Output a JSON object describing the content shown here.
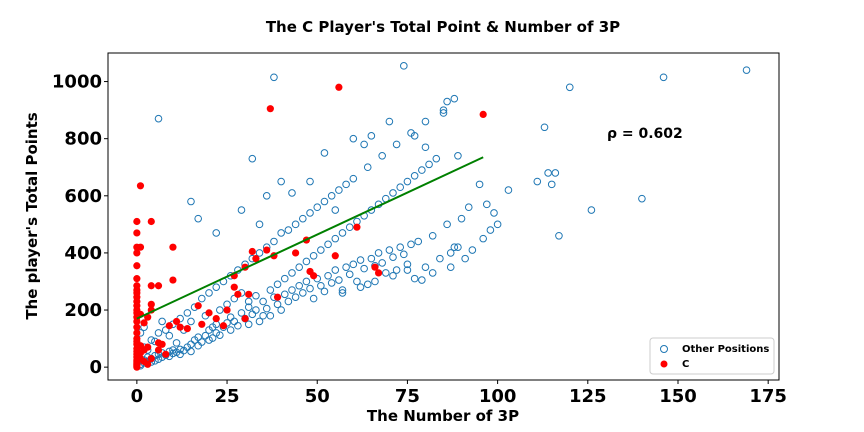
{
  "chart_data": {
    "type": "scatter",
    "title": "The C Player's Total Point & Number of 3P",
    "xlabel": "The Number of 3P",
    "ylabel": "The player's Total Points",
    "xlim": [
      -8,
      178
    ],
    "ylim": [
      -45,
      1100
    ],
    "x_ticks": [
      0,
      25,
      50,
      75,
      100,
      125,
      150,
      175
    ],
    "y_ticks": [
      0,
      200,
      400,
      600,
      800,
      1000
    ],
    "grid": false,
    "legend_position": "lower-right",
    "annotation": "ρ = 0.602",
    "colors": {
      "other": "#1f77b4",
      "c": "#ff0000",
      "trend": "#008000"
    },
    "trendline": {
      "x": [
        0,
        96
      ],
      "y": [
        170,
        735
      ]
    },
    "series": [
      {
        "name": "Other Positions",
        "marker": "open-circle",
        "points": [
          [
            1,
            5
          ],
          [
            1,
            10
          ],
          [
            2,
            15
          ],
          [
            2,
            25
          ],
          [
            3,
            20
          ],
          [
            3,
            35
          ],
          [
            4,
            18
          ],
          [
            4,
            30
          ],
          [
            5,
            22
          ],
          [
            5,
            40
          ],
          [
            6,
            28
          ],
          [
            6,
            45
          ],
          [
            7,
            35
          ],
          [
            7,
            50
          ],
          [
            8,
            42
          ],
          [
            9,
            38
          ],
          [
            9,
            55
          ],
          [
            10,
            48
          ],
          [
            10,
            60
          ],
          [
            11,
            52
          ],
          [
            12,
            45
          ],
          [
            12,
            62
          ],
          [
            13,
            58
          ],
          [
            14,
            70
          ],
          [
            15,
            55
          ],
          [
            15,
            80
          ],
          [
            16,
            95
          ],
          [
            17,
            75
          ],
          [
            17,
            105
          ],
          [
            18,
            88
          ],
          [
            19,
            110
          ],
          [
            20,
            95
          ],
          [
            20,
            130
          ],
          [
            21,
            102
          ],
          [
            22,
            120
          ],
          [
            22,
            150
          ],
          [
            23,
            112
          ],
          [
            24,
            140
          ],
          [
            25,
            155
          ],
          [
            26,
            130
          ],
          [
            26,
            175
          ],
          [
            27,
            160
          ],
          [
            28,
            145
          ],
          [
            29,
            190
          ],
          [
            30,
            170
          ],
          [
            31,
            150
          ],
          [
            31,
            210
          ],
          [
            32,
            185
          ],
          [
            33,
            200
          ],
          [
            34,
            160
          ],
          [
            35,
            230
          ],
          [
            36,
            205
          ],
          [
            37,
            180
          ],
          [
            38,
            245
          ],
          [
            39,
            220
          ],
          [
            40,
            200
          ],
          [
            41,
            255
          ],
          [
            42,
            230
          ],
          [
            43,
            270
          ],
          [
            44,
            245
          ],
          [
            45,
            285
          ],
          [
            46,
            260
          ],
          [
            47,
            300
          ],
          [
            48,
            275
          ],
          [
            49,
            240
          ],
          [
            50,
            310
          ],
          [
            51,
            285
          ],
          [
            52,
            265
          ],
          [
            53,
            320
          ],
          [
            54,
            295
          ],
          [
            55,
            340
          ],
          [
            56,
            305
          ],
          [
            57,
            270
          ],
          [
            58,
            350
          ],
          [
            59,
            325
          ],
          [
            60,
            360
          ],
          [
            61,
            300
          ],
          [
            62,
            375
          ],
          [
            63,
            345
          ],
          [
            64,
            290
          ],
          [
            65,
            380
          ],
          [
            66,
            355
          ],
          [
            67,
            400
          ],
          [
            68,
            365
          ],
          [
            69,
            330
          ],
          [
            70,
            410
          ],
          [
            71,
            385
          ],
          [
            72,
            340
          ],
          [
            73,
            420
          ],
          [
            74,
            395
          ],
          [
            75,
            360
          ],
          [
            76,
            430
          ],
          [
            77,
            310
          ],
          [
            78,
            440
          ],
          [
            80,
            350
          ],
          [
            82,
            460
          ],
          [
            84,
            380
          ],
          [
            86,
            500
          ],
          [
            88,
            420
          ],
          [
            90,
            520
          ],
          [
            2,
            70
          ],
          [
            4,
            95
          ],
          [
            6,
            120
          ],
          [
            8,
            130
          ],
          [
            10,
            150
          ],
          [
            12,
            170
          ],
          [
            14,
            190
          ],
          [
            16,
            210
          ],
          [
            18,
            240
          ],
          [
            20,
            260
          ],
          [
            22,
            280
          ],
          [
            24,
            300
          ],
          [
            26,
            320
          ],
          [
            28,
            340
          ],
          [
            30,
            360
          ],
          [
            32,
            380
          ],
          [
            34,
            400
          ],
          [
            36,
            420
          ],
          [
            38,
            440
          ],
          [
            40,
            470
          ],
          [
            42,
            480
          ],
          [
            44,
            500
          ],
          [
            46,
            520
          ],
          [
            48,
            540
          ],
          [
            50,
            560
          ],
          [
            52,
            580
          ],
          [
            54,
            600
          ],
          [
            56,
            620
          ],
          [
            58,
            640
          ],
          [
            60,
            660
          ],
          [
            64,
            700
          ],
          [
            68,
            740
          ],
          [
            72,
            780
          ],
          [
            76,
            820
          ],
          [
            80,
            860
          ],
          [
            85,
            900
          ],
          [
            86,
            930
          ],
          [
            88,
            940
          ],
          [
            6,
            870
          ],
          [
            15,
            580
          ],
          [
            17,
            520
          ],
          [
            22,
            470
          ],
          [
            29,
            550
          ],
          [
            32,
            730
          ],
          [
            34,
            500
          ],
          [
            36,
            600
          ],
          [
            38,
            1015
          ],
          [
            40,
            650
          ],
          [
            43,
            610
          ],
          [
            48,
            650
          ],
          [
            52,
            750
          ],
          [
            55,
            550
          ],
          [
            60,
            800
          ],
          [
            63,
            780
          ],
          [
            65,
            810
          ],
          [
            70,
            860
          ],
          [
            74,
            1055
          ],
          [
            77,
            810
          ],
          [
            80,
            770
          ],
          [
            85,
            890
          ],
          [
            89,
            740
          ],
          [
            95,
            640
          ],
          [
            97,
            570
          ],
          [
            100,
            500
          ],
          [
            113,
            840
          ],
          [
            114,
            680
          ],
          [
            116,
            680
          ],
          [
            117,
            460
          ],
          [
            120,
            980
          ],
          [
            126,
            550
          ],
          [
            140,
            590
          ],
          [
            146,
            1015
          ],
          [
            169,
            1040
          ],
          [
            1,
            120
          ],
          [
            2,
            140
          ],
          [
            3,
            60
          ],
          [
            5,
            90
          ],
          [
            7,
            160
          ],
          [
            9,
            110
          ],
          [
            11,
            85
          ],
          [
            13,
            130
          ],
          [
            15,
            160
          ],
          [
            19,
            180
          ],
          [
            21,
            140
          ],
          [
            23,
            200
          ],
          [
            25,
            220
          ],
          [
            27,
            240
          ],
          [
            29,
            260
          ],
          [
            31,
            230
          ],
          [
            33,
            250
          ],
          [
            35,
            180
          ],
          [
            37,
            270
          ],
          [
            39,
            290
          ],
          [
            41,
            310
          ],
          [
            43,
            330
          ],
          [
            45,
            350
          ],
          [
            47,
            370
          ],
          [
            49,
            390
          ],
          [
            51,
            410
          ],
          [
            53,
            430
          ],
          [
            55,
            450
          ],
          [
            57,
            470
          ],
          [
            59,
            490
          ],
          [
            61,
            510
          ],
          [
            63,
            530
          ],
          [
            65,
            550
          ],
          [
            67,
            570
          ],
          [
            69,
            590
          ],
          [
            71,
            610
          ],
          [
            73,
            630
          ],
          [
            75,
            650
          ],
          [
            77,
            670
          ],
          [
            79,
            690
          ],
          [
            81,
            710
          ],
          [
            83,
            730
          ],
          [
            87,
            350
          ],
          [
            91,
            380
          ],
          [
            93,
            410
          ],
          [
            96,
            450
          ],
          [
            98,
            480
          ],
          [
            57,
            260
          ],
          [
            62,
            280
          ],
          [
            66,
            300
          ],
          [
            71,
            320
          ],
          [
            75,
            340
          ],
          [
            79,
            305
          ],
          [
            82,
            330
          ],
          [
            87,
            400
          ],
          [
            89,
            420
          ],
          [
            92,
            560
          ],
          [
            99,
            540
          ],
          [
            103,
            620
          ],
          [
            111,
            650
          ],
          [
            115,
            640
          ]
        ]
      },
      {
        "name": "C",
        "marker": "filled-circle",
        "points": [
          [
            0,
            0
          ],
          [
            0,
            5
          ],
          [
            0,
            10
          ],
          [
            0,
            15
          ],
          [
            0,
            20
          ],
          [
            0,
            25
          ],
          [
            0,
            35
          ],
          [
            0,
            45
          ],
          [
            0,
            55
          ],
          [
            0,
            65
          ],
          [
            0,
            80
          ],
          [
            0,
            90
          ],
          [
            0,
            100
          ],
          [
            0,
            120
          ],
          [
            0,
            140
          ],
          [
            0,
            160
          ],
          [
            0,
            175
          ],
          [
            0,
            190
          ],
          [
            0,
            200
          ],
          [
            0,
            215
          ],
          [
            0,
            230
          ],
          [
            0,
            245
          ],
          [
            0,
            260
          ],
          [
            0,
            270
          ],
          [
            0,
            285
          ],
          [
            0,
            310
          ],
          [
            0,
            355
          ],
          [
            0,
            400
          ],
          [
            0,
            420
          ],
          [
            0,
            470
          ],
          [
            0,
            510
          ],
          [
            1,
            30
          ],
          [
            1,
            50
          ],
          [
            1,
            75
          ],
          [
            1,
            185
          ],
          [
            1,
            420
          ],
          [
            1,
            635
          ],
          [
            2,
            20
          ],
          [
            2,
            60
          ],
          [
            2,
            155
          ],
          [
            3,
            10
          ],
          [
            3,
            70
          ],
          [
            3,
            175
          ],
          [
            4,
            30
          ],
          [
            4,
            200
          ],
          [
            4,
            220
          ],
          [
            4,
            285
          ],
          [
            4,
            510
          ],
          [
            6,
            60
          ],
          [
            6,
            85
          ],
          [
            6,
            285
          ],
          [
            7,
            80
          ],
          [
            8,
            45
          ],
          [
            9,
            145
          ],
          [
            10,
            420
          ],
          [
            10,
            305
          ],
          [
            11,
            160
          ],
          [
            12,
            140
          ],
          [
            14,
            135
          ],
          [
            17,
            215
          ],
          [
            18,
            150
          ],
          [
            20,
            190
          ],
          [
            22,
            170
          ],
          [
            24,
            145
          ],
          [
            25,
            200
          ],
          [
            27,
            280
          ],
          [
            27,
            320
          ],
          [
            28,
            255
          ],
          [
            30,
            170
          ],
          [
            30,
            350
          ],
          [
            31,
            255
          ],
          [
            32,
            405
          ],
          [
            33,
            380
          ],
          [
            36,
            410
          ],
          [
            37,
            905
          ],
          [
            38,
            390
          ],
          [
            39,
            245
          ],
          [
            44,
            400
          ],
          [
            47,
            445
          ],
          [
            48,
            335
          ],
          [
            49,
            320
          ],
          [
            55,
            390
          ],
          [
            56,
            980
          ],
          [
            61,
            490
          ],
          [
            66,
            350
          ],
          [
            67,
            330
          ],
          [
            96,
            885
          ]
        ]
      }
    ]
  }
}
